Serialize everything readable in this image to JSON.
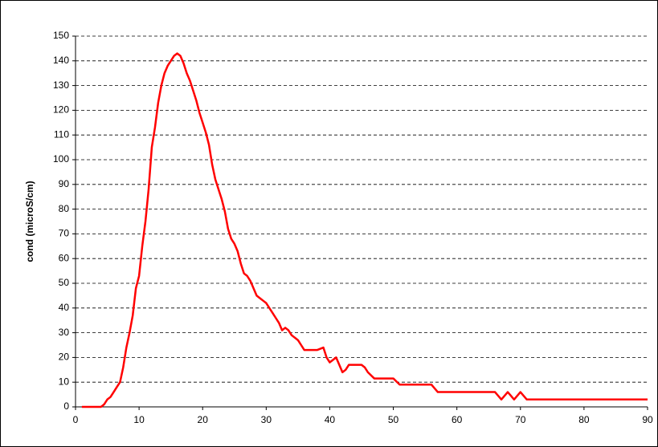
{
  "chart_data": {
    "type": "line",
    "y_label": "cond (microS/cm)",
    "x": [
      1,
      2,
      3,
      4,
      4.5,
      5,
      5.5,
      6,
      6.5,
      7,
      7.5,
      8,
      8.5,
      9,
      9.5,
      10,
      10.5,
      11,
      11.5,
      12,
      12.5,
      13,
      13.5,
      14,
      14.5,
      15,
      15.5,
      16,
      16.5,
      17,
      17.5,
      18,
      18.5,
      19,
      19.5,
      20,
      20.5,
      21,
      21.5,
      22,
      22.5,
      23,
      23.5,
      24,
      24.5,
      25,
      25.5,
      26,
      26.5,
      27,
      27.5,
      28,
      28.5,
      29,
      29.5,
      30,
      30.5,
      31,
      31.5,
      32,
      32.5,
      33,
      33.5,
      34,
      34.5,
      35,
      35.5,
      36,
      37,
      38,
      39,
      39.5,
      40,
      40.5,
      41,
      41.5,
      42,
      42.5,
      43,
      44,
      45,
      45.5,
      46,
      47,
      48,
      49,
      50,
      51,
      52,
      53,
      54,
      55,
      56,
      57,
      58,
      59,
      60,
      61,
      62,
      63,
      64,
      65,
      66,
      67,
      68,
      69,
      70,
      71,
      72,
      75,
      80,
      85,
      90
    ],
    "series": [
      {
        "name": "cond",
        "color": "#ff0000",
        "values": [
          0,
          0,
          0,
          0,
          1,
          3,
          4,
          6,
          8,
          10,
          16,
          24,
          30,
          37,
          48,
          53,
          65,
          75,
          88,
          105,
          113,
          123,
          130,
          135,
          138,
          140,
          142,
          143,
          142,
          139,
          135,
          132,
          128,
          124,
          119,
          115,
          111,
          106,
          98,
          92,
          88,
          84,
          79,
          72,
          68,
          66,
          63,
          58,
          54,
          53,
          51,
          48,
          45,
          44,
          43,
          42,
          40,
          38,
          36,
          34,
          31,
          32,
          31,
          29,
          28,
          27,
          25,
          23,
          23,
          23,
          24,
          20,
          18,
          19,
          20,
          17,
          14,
          15,
          17,
          17,
          17,
          16,
          14,
          11.5,
          11.5,
          11.5,
          11.5,
          9,
          9,
          9,
          9,
          9,
          9,
          6,
          6,
          6,
          6,
          6,
          6,
          6,
          6,
          6,
          6,
          3,
          6,
          3,
          6,
          3,
          3,
          3,
          3,
          3,
          3
        ]
      }
    ],
    "xlim": [
      0,
      90
    ],
    "xticks": [
      0,
      10,
      20,
      30,
      40,
      50,
      60,
      70,
      80,
      90
    ],
    "ylim": [
      0,
      150
    ],
    "yticks": [
      0,
      10,
      20,
      30,
      40,
      50,
      60,
      70,
      80,
      90,
      100,
      110,
      120,
      130,
      140,
      150
    ],
    "grid": true
  }
}
